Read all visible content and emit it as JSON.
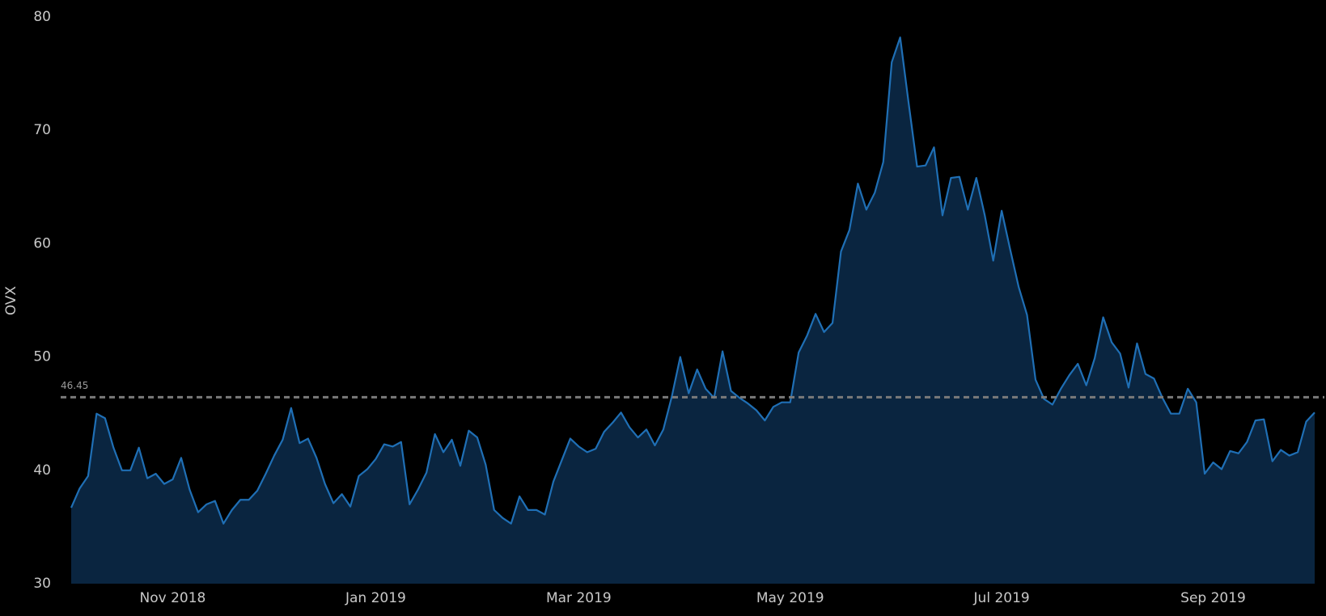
{
  "chart_data": {
    "type": "area",
    "y_label": "OVX",
    "ylim": [
      30,
      80
    ],
    "yticks": [
      30,
      40,
      50,
      60,
      70,
      80
    ],
    "grid": false,
    "reference_line": {
      "value": 46.45,
      "color": "#7a7a7a"
    },
    "categories": [
      null,
      null,
      null,
      null,
      null,
      null,
      null,
      null,
      null,
      null,
      null,
      null,
      "Nov 2018",
      null,
      null,
      null,
      null,
      null,
      null,
      null,
      null,
      null,
      null,
      null,
      null,
      null,
      null,
      null,
      null,
      null,
      null,
      null,
      null,
      null,
      null,
      null,
      "Jan 2019",
      null,
      null,
      null,
      null,
      null,
      null,
      null,
      null,
      null,
      null,
      null,
      null,
      null,
      null,
      null,
      null,
      null,
      null,
      null,
      null,
      null,
      null,
      null,
      "Mar 2019",
      null,
      null,
      null,
      null,
      null,
      null,
      null,
      null,
      null,
      null,
      null,
      null,
      null,
      null,
      null,
      null,
      null,
      null,
      null,
      null,
      null,
      null,
      null,
      null,
      "May 2019",
      null,
      null,
      null,
      null,
      null,
      null,
      null,
      null,
      null,
      null,
      null,
      null,
      null,
      null,
      null,
      null,
      null,
      null,
      null,
      null,
      null,
      null,
      null,
      null,
      "Jul 2019",
      null,
      null,
      null,
      null,
      null,
      null,
      null,
      null,
      null,
      null,
      null,
      null,
      null,
      null,
      null,
      null,
      null,
      null,
      null,
      null,
      null,
      null,
      null,
      null,
      "Sep 2019",
      null,
      null,
      null,
      null,
      null,
      null,
      null,
      null,
      null,
      null,
      null,
      null
    ],
    "series": [
      {
        "color": "#1f6fb5",
        "fill": "#0a2540",
        "values": [
          36.7,
          38.4,
          39.5,
          45.0,
          44.6,
          42,
          40,
          40,
          42,
          39.3,
          39.7,
          38.8,
          39.2,
          41.1,
          38.3,
          36.3,
          37,
          37.3,
          35.3,
          36.5,
          37.4,
          37.4,
          38.2,
          39.7,
          41.3,
          42.7,
          45.5,
          42.4,
          42.8,
          41.1,
          38.8,
          37.1,
          37.9,
          36.8,
          39.5,
          40.1,
          41,
          42.3,
          42.1,
          42.5,
          37,
          38.3,
          39.8,
          43.2,
          41.6,
          42.7,
          40.4,
          43.5,
          42.9,
          40.5,
          36.5,
          35.8,
          35.3,
          37.7,
          36.5,
          36.5,
          36.1,
          39,
          40.9,
          42.8,
          42.1,
          41.6,
          41.9,
          43.4,
          44.2,
          45.1,
          43.8,
          42.9,
          43.6,
          42.2,
          43.6,
          46.5,
          50,
          46.8,
          48.9,
          47.2,
          46.4,
          50.5,
          47,
          46.4,
          45.9,
          45.3,
          44.4,
          45.6,
          46,
          46,
          50.4,
          51.9,
          53.8,
          52.2,
          53,
          59.3,
          61.2,
          65.3,
          63,
          64.5,
          67.2,
          76,
          78.2,
          72.4,
          66.8,
          66.9,
          68.5,
          62.5,
          65.8,
          65.9,
          63,
          65.8,
          62.5,
          58.5,
          62.9,
          59.5,
          56.2,
          53.7,
          48,
          46.3,
          45.8,
          47.2,
          48.4,
          49.4,
          47.5,
          49.9,
          53.5,
          51.3,
          50.3,
          47.3,
          51.2,
          48.5,
          48.1,
          46.4,
          45,
          45,
          47.2,
          46,
          39.7,
          40.7,
          40.1,
          41.7,
          41.5,
          42.5,
          44.4,
          44.5,
          40.8,
          41.8,
          41.3,
          41.6,
          44.3,
          45.1
        ]
      }
    ]
  }
}
